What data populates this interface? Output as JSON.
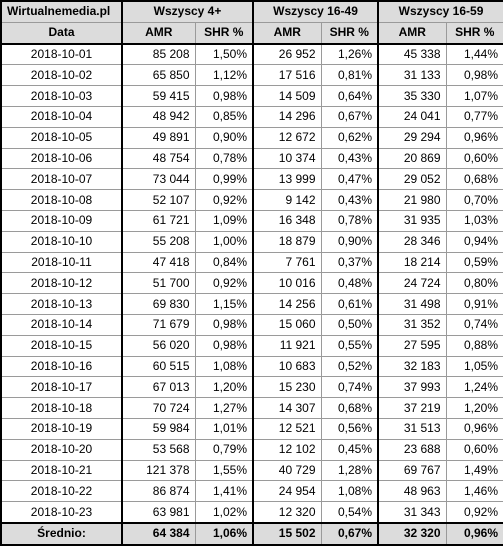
{
  "header": {
    "site": "Wirtualnemedia.pl",
    "groups": [
      "Wszyscy 4+",
      "Wszyscy 16-49",
      "Wszyscy 16-59"
    ],
    "date_label": "Data",
    "amr_label": "AMR",
    "shr_label": "SHR %"
  },
  "rows": [
    {
      "date": "2018-10-01",
      "a1": "85 208",
      "s1": "1,50%",
      "a2": "26 952",
      "s2": "1,26%",
      "a3": "45 338",
      "s3": "1,44%"
    },
    {
      "date": "2018-10-02",
      "a1": "65 850",
      "s1": "1,12%",
      "a2": "17 516",
      "s2": "0,81%",
      "a3": "31 133",
      "s3": "0,98%"
    },
    {
      "date": "2018-10-03",
      "a1": "59 415",
      "s1": "0,98%",
      "a2": "14 509",
      "s2": "0,64%",
      "a3": "35 330",
      "s3": "1,07%"
    },
    {
      "date": "2018-10-04",
      "a1": "48 942",
      "s1": "0,85%",
      "a2": "14 296",
      "s2": "0,67%",
      "a3": "24 041",
      "s3": "0,77%"
    },
    {
      "date": "2018-10-05",
      "a1": "49 891",
      "s1": "0,90%",
      "a2": "12 672",
      "s2": "0,62%",
      "a3": "29 294",
      "s3": "0,96%"
    },
    {
      "date": "2018-10-06",
      "a1": "48 754",
      "s1": "0,78%",
      "a2": "10 374",
      "s2": "0,43%",
      "a3": "20 869",
      "s3": "0,60%"
    },
    {
      "date": "2018-10-07",
      "a1": "73 044",
      "s1": "0,99%",
      "a2": "13 999",
      "s2": "0,47%",
      "a3": "29 052",
      "s3": "0,68%"
    },
    {
      "date": "2018-10-08",
      "a1": "52 107",
      "s1": "0,92%",
      "a2": "9 142",
      "s2": "0,43%",
      "a3": "21 980",
      "s3": "0,70%"
    },
    {
      "date": "2018-10-09",
      "a1": "61 721",
      "s1": "1,09%",
      "a2": "16 348",
      "s2": "0,78%",
      "a3": "31 935",
      "s3": "1,03%"
    },
    {
      "date": "2018-10-10",
      "a1": "55 208",
      "s1": "1,00%",
      "a2": "18 879",
      "s2": "0,90%",
      "a3": "28 346",
      "s3": "0,94%"
    },
    {
      "date": "2018-10-11",
      "a1": "47 418",
      "s1": "0,84%",
      "a2": "7 761",
      "s2": "0,37%",
      "a3": "18 214",
      "s3": "0,59%"
    },
    {
      "date": "2018-10-12",
      "a1": "51 700",
      "s1": "0,92%",
      "a2": "10 016",
      "s2": "0,48%",
      "a3": "24 724",
      "s3": "0,80%"
    },
    {
      "date": "2018-10-13",
      "a1": "69 830",
      "s1": "1,15%",
      "a2": "14 256",
      "s2": "0,61%",
      "a3": "31 498",
      "s3": "0,91%"
    },
    {
      "date": "2018-10-14",
      "a1": "71 679",
      "s1": "0,98%",
      "a2": "15 060",
      "s2": "0,50%",
      "a3": "31 352",
      "s3": "0,74%"
    },
    {
      "date": "2018-10-15",
      "a1": "56 020",
      "s1": "0,98%",
      "a2": "11 921",
      "s2": "0,55%",
      "a3": "27 595",
      "s3": "0,88%"
    },
    {
      "date": "2018-10-16",
      "a1": "60 515",
      "s1": "1,08%",
      "a2": "10 683",
      "s2": "0,52%",
      "a3": "32 183",
      "s3": "1,05%"
    },
    {
      "date": "2018-10-17",
      "a1": "67 013",
      "s1": "1,20%",
      "a2": "15 230",
      "s2": "0,74%",
      "a3": "37 993",
      "s3": "1,24%"
    },
    {
      "date": "2018-10-18",
      "a1": "70 724",
      "s1": "1,27%",
      "a2": "14 307",
      "s2": "0,68%",
      "a3": "37 219",
      "s3": "1,20%"
    },
    {
      "date": "2018-10-19",
      "a1": "59 984",
      "s1": "1,01%",
      "a2": "12 521",
      "s2": "0,56%",
      "a3": "31 513",
      "s3": "0,96%"
    },
    {
      "date": "2018-10-20",
      "a1": "53 568",
      "s1": "0,79%",
      "a2": "12 102",
      "s2": "0,45%",
      "a3": "23 688",
      "s3": "0,60%"
    },
    {
      "date": "2018-10-21",
      "a1": "121 378",
      "s1": "1,55%",
      "a2": "40 729",
      "s2": "1,28%",
      "a3": "69 767",
      "s3": "1,49%"
    },
    {
      "date": "2018-10-22",
      "a1": "86 874",
      "s1": "1,41%",
      "a2": "24 954",
      "s2": "1,08%",
      "a3": "48 963",
      "s3": "1,46%"
    },
    {
      "date": "2018-10-23",
      "a1": "63 981",
      "s1": "1,02%",
      "a2": "12 320",
      "s2": "0,54%",
      "a3": "31 343",
      "s3": "0,92%"
    }
  ],
  "footer": {
    "label": "Średnio:",
    "a1": "64 384",
    "s1": "1,06%",
    "a2": "15 502",
    "s2": "0,67%",
    "a3": "32 320",
    "s3": "0,96%"
  }
}
